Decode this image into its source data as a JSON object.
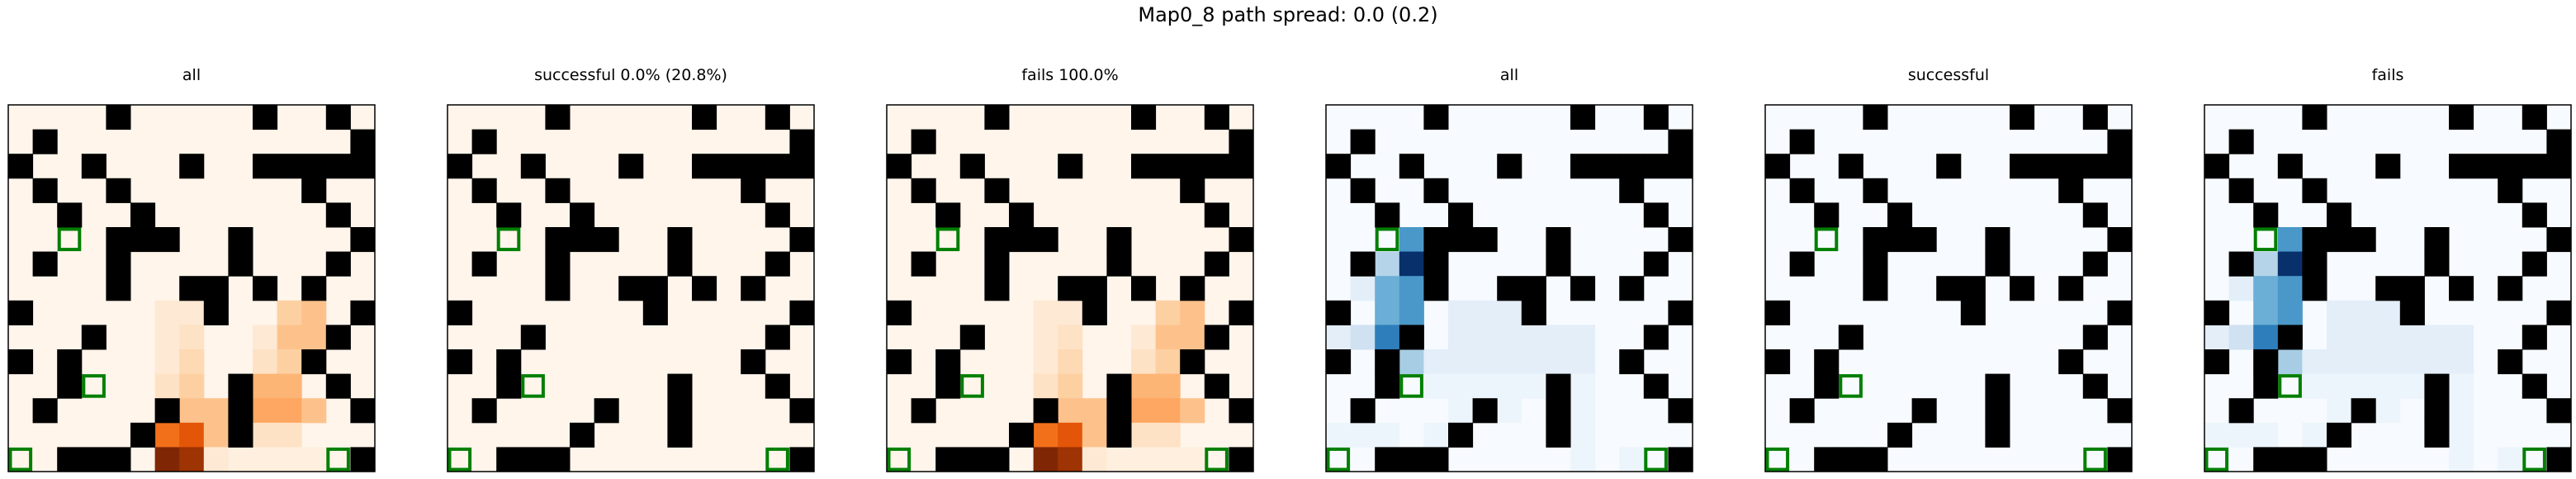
{
  "figure_title": "Map0_8 path spread: 0.0 (0.2)",
  "chart_data": [
    {
      "type": "heatmap",
      "title": "all",
      "colormap": "Oranges",
      "grid_size": 15,
      "max_value": 1.0,
      "markers": [
        {
          "row": 5,
          "col": 2
        },
        {
          "row": 11,
          "col": 3
        },
        {
          "row": 14,
          "col": 0
        },
        {
          "row": 14,
          "col": 13
        }
      ],
      "highlights": [
        {
          "row": 8,
          "col": 6,
          "v": 0.1
        },
        {
          "row": 8,
          "col": 7,
          "v": 0.1
        },
        {
          "row": 8,
          "col": 11,
          "v": 0.25
        },
        {
          "row": 8,
          "col": 12,
          "v": 0.3
        },
        {
          "row": 9,
          "col": 6,
          "v": 0.1
        },
        {
          "row": 9,
          "col": 7,
          "v": 0.15
        },
        {
          "row": 9,
          "col": 10,
          "v": 0.1
        },
        {
          "row": 9,
          "col": 11,
          "v": 0.3
        },
        {
          "row": 9,
          "col": 12,
          "v": 0.3
        },
        {
          "row": 10,
          "col": 6,
          "v": 0.1
        },
        {
          "row": 10,
          "col": 7,
          "v": 0.2
        },
        {
          "row": 10,
          "col": 10,
          "v": 0.15
        },
        {
          "row": 10,
          "col": 11,
          "v": 0.25
        },
        {
          "row": 10,
          "col": 12,
          "v": 0.3
        },
        {
          "row": 11,
          "col": 6,
          "v": 0.15
        },
        {
          "row": 11,
          "col": 7,
          "v": 0.25
        },
        {
          "row": 11,
          "col": 10,
          "v": 0.35
        },
        {
          "row": 11,
          "col": 11,
          "v": 0.35
        },
        {
          "row": 12,
          "col": 7,
          "v": 0.3
        },
        {
          "row": 12,
          "col": 8,
          "v": 0.3
        },
        {
          "row": 12,
          "col": 10,
          "v": 0.4
        },
        {
          "row": 12,
          "col": 11,
          "v": 0.4
        },
        {
          "row": 12,
          "col": 12,
          "v": 0.3
        },
        {
          "row": 13,
          "col": 6,
          "v": 0.6
        },
        {
          "row": 13,
          "col": 7,
          "v": 0.7
        },
        {
          "row": 13,
          "col": 8,
          "v": 0.3
        },
        {
          "row": 13,
          "col": 10,
          "v": 0.15
        },
        {
          "row": 13,
          "col": 11,
          "v": 0.15
        },
        {
          "row": 14,
          "col": 6,
          "v": 1.0
        },
        {
          "row": 14,
          "col": 7,
          "v": 0.9
        },
        {
          "row": 14,
          "col": 8,
          "v": 0.1
        },
        {
          "row": 14,
          "col": 9,
          "v": 0.05
        },
        {
          "row": 14,
          "col": 10,
          "v": 0.05
        },
        {
          "row": 14,
          "col": 11,
          "v": 0.05
        },
        {
          "row": 14,
          "col": 12,
          "v": 0.05
        }
      ]
    },
    {
      "type": "heatmap",
      "title": "successful 0.0% (20.8%)",
      "colormap": "Oranges",
      "grid_size": 15,
      "max_value": 1.0,
      "markers": [
        {
          "row": 5,
          "col": 2
        },
        {
          "row": 11,
          "col": 3
        },
        {
          "row": 14,
          "col": 0
        },
        {
          "row": 14,
          "col": 13
        }
      ],
      "highlights": []
    },
    {
      "type": "heatmap",
      "title": "fails 100.0%",
      "colormap": "Oranges",
      "grid_size": 15,
      "max_value": 1.0,
      "markers": [
        {
          "row": 5,
          "col": 2
        },
        {
          "row": 11,
          "col": 3
        },
        {
          "row": 14,
          "col": 0
        },
        {
          "row": 14,
          "col": 13
        }
      ],
      "highlights": [
        {
          "row": 8,
          "col": 6,
          "v": 0.1
        },
        {
          "row": 8,
          "col": 7,
          "v": 0.1
        },
        {
          "row": 8,
          "col": 11,
          "v": 0.25
        },
        {
          "row": 8,
          "col": 12,
          "v": 0.3
        },
        {
          "row": 9,
          "col": 6,
          "v": 0.1
        },
        {
          "row": 9,
          "col": 7,
          "v": 0.15
        },
        {
          "row": 9,
          "col": 10,
          "v": 0.1
        },
        {
          "row": 9,
          "col": 11,
          "v": 0.3
        },
        {
          "row": 9,
          "col": 12,
          "v": 0.3
        },
        {
          "row": 10,
          "col": 6,
          "v": 0.1
        },
        {
          "row": 10,
          "col": 7,
          "v": 0.2
        },
        {
          "row": 10,
          "col": 10,
          "v": 0.15
        },
        {
          "row": 10,
          "col": 11,
          "v": 0.25
        },
        {
          "row": 10,
          "col": 12,
          "v": 0.3
        },
        {
          "row": 11,
          "col": 6,
          "v": 0.15
        },
        {
          "row": 11,
          "col": 7,
          "v": 0.25
        },
        {
          "row": 11,
          "col": 10,
          "v": 0.35
        },
        {
          "row": 11,
          "col": 11,
          "v": 0.35
        },
        {
          "row": 12,
          "col": 7,
          "v": 0.3
        },
        {
          "row": 12,
          "col": 8,
          "v": 0.3
        },
        {
          "row": 12,
          "col": 10,
          "v": 0.4
        },
        {
          "row": 12,
          "col": 11,
          "v": 0.4
        },
        {
          "row": 12,
          "col": 12,
          "v": 0.3
        },
        {
          "row": 13,
          "col": 6,
          "v": 0.6
        },
        {
          "row": 13,
          "col": 7,
          "v": 0.7
        },
        {
          "row": 13,
          "col": 8,
          "v": 0.3
        },
        {
          "row": 13,
          "col": 10,
          "v": 0.15
        },
        {
          "row": 13,
          "col": 11,
          "v": 0.15
        },
        {
          "row": 14,
          "col": 6,
          "v": 1.0
        },
        {
          "row": 14,
          "col": 7,
          "v": 0.9
        },
        {
          "row": 14,
          "col": 8,
          "v": 0.1
        },
        {
          "row": 14,
          "col": 9,
          "v": 0.05
        },
        {
          "row": 14,
          "col": 10,
          "v": 0.05
        },
        {
          "row": 14,
          "col": 11,
          "v": 0.05
        },
        {
          "row": 14,
          "col": 12,
          "v": 0.05
        }
      ]
    },
    {
      "type": "heatmap",
      "title": "all",
      "colormap": "Blues",
      "grid_size": 15,
      "max_value": 1.0,
      "markers": [
        {
          "row": 5,
          "col": 2
        },
        {
          "row": 11,
          "col": 3
        },
        {
          "row": 14,
          "col": 0
        },
        {
          "row": 14,
          "col": 13
        }
      ],
      "highlights": [
        {
          "row": 5,
          "col": 3,
          "v": 0.6
        },
        {
          "row": 6,
          "col": 1,
          "v": 0.1
        },
        {
          "row": 6,
          "col": 2,
          "v": 0.3
        },
        {
          "row": 6,
          "col": 3,
          "v": 1.0
        },
        {
          "row": 7,
          "col": 1,
          "v": 0.1
        },
        {
          "row": 7,
          "col": 2,
          "v": 0.5
        },
        {
          "row": 7,
          "col": 3,
          "v": 0.6
        },
        {
          "row": 8,
          "col": 2,
          "v": 0.5
        },
        {
          "row": 8,
          "col": 3,
          "v": 0.6
        },
        {
          "row": 8,
          "col": 5,
          "v": 0.1
        },
        {
          "row": 8,
          "col": 6,
          "v": 0.1
        },
        {
          "row": 8,
          "col": 7,
          "v": 0.1
        },
        {
          "row": 9,
          "col": 0,
          "v": 0.1
        },
        {
          "row": 9,
          "col": 1,
          "v": 0.2
        },
        {
          "row": 9,
          "col": 2,
          "v": 0.7
        },
        {
          "row": 9,
          "col": 3,
          "v": 0.35
        },
        {
          "row": 9,
          "col": 5,
          "v": 0.1
        },
        {
          "row": 9,
          "col": 6,
          "v": 0.1
        },
        {
          "row": 9,
          "col": 7,
          "v": 0.1
        },
        {
          "row": 9,
          "col": 8,
          "v": 0.1
        },
        {
          "row": 9,
          "col": 9,
          "v": 0.1
        },
        {
          "row": 9,
          "col": 10,
          "v": 0.1
        },
        {
          "row": 10,
          "col": 0,
          "v": 0.1
        },
        {
          "row": 10,
          "col": 2,
          "v": 0.3
        },
        {
          "row": 10,
          "col": 3,
          "v": 0.35
        },
        {
          "row": 10,
          "col": 4,
          "v": 0.1
        },
        {
          "row": 10,
          "col": 5,
          "v": 0.1
        },
        {
          "row": 10,
          "col": 6,
          "v": 0.1
        },
        {
          "row": 10,
          "col": 7,
          "v": 0.1
        },
        {
          "row": 10,
          "col": 8,
          "v": 0.1
        },
        {
          "row": 10,
          "col": 9,
          "v": 0.1
        },
        {
          "row": 10,
          "col": 10,
          "v": 0.1
        },
        {
          "row": 11,
          "col": 4,
          "v": 0.05
        },
        {
          "row": 11,
          "col": 5,
          "v": 0.05
        },
        {
          "row": 11,
          "col": 6,
          "v": 0.05
        },
        {
          "row": 11,
          "col": 7,
          "v": 0.05
        },
        {
          "row": 11,
          "col": 8,
          "v": 0.05
        },
        {
          "row": 11,
          "col": 10,
          "v": 0.05
        },
        {
          "row": 12,
          "col": 5,
          "v": 0.05
        },
        {
          "row": 12,
          "col": 6,
          "v": 0.05
        },
        {
          "row": 12,
          "col": 7,
          "v": 0.05
        },
        {
          "row": 12,
          "col": 9,
          "v": 0.05
        },
        {
          "row": 12,
          "col": 10,
          "v": 0.05
        },
        {
          "row": 13,
          "col": 0,
          "v": 0.05
        },
        {
          "row": 13,
          "col": 1,
          "v": 0.05
        },
        {
          "row": 13,
          "col": 2,
          "v": 0.05
        },
        {
          "row": 13,
          "col": 4,
          "v": 0.05
        },
        {
          "row": 13,
          "col": 10,
          "v": 0.05
        },
        {
          "row": 14,
          "col": 10,
          "v": 0.05
        },
        {
          "row": 14,
          "col": 12,
          "v": 0.05
        }
      ]
    },
    {
      "type": "heatmap",
      "title": "successful",
      "colormap": "Blues",
      "grid_size": 15,
      "max_value": 1.0,
      "markers": [
        {
          "row": 5,
          "col": 2
        },
        {
          "row": 11,
          "col": 3
        },
        {
          "row": 14,
          "col": 0
        },
        {
          "row": 14,
          "col": 13
        }
      ],
      "highlights": []
    },
    {
      "type": "heatmap",
      "title": "fails",
      "colormap": "Blues",
      "grid_size": 15,
      "max_value": 1.0,
      "markers": [
        {
          "row": 5,
          "col": 2
        },
        {
          "row": 11,
          "col": 3
        },
        {
          "row": 14,
          "col": 0
        },
        {
          "row": 14,
          "col": 13
        }
      ],
      "highlights": [
        {
          "row": 5,
          "col": 3,
          "v": 0.6
        },
        {
          "row": 6,
          "col": 1,
          "v": 0.1
        },
        {
          "row": 6,
          "col": 2,
          "v": 0.3
        },
        {
          "row": 6,
          "col": 3,
          "v": 1.0
        },
        {
          "row": 7,
          "col": 1,
          "v": 0.1
        },
        {
          "row": 7,
          "col": 2,
          "v": 0.5
        },
        {
          "row": 7,
          "col": 3,
          "v": 0.6
        },
        {
          "row": 8,
          "col": 2,
          "v": 0.5
        },
        {
          "row": 8,
          "col": 3,
          "v": 0.6
        },
        {
          "row": 8,
          "col": 5,
          "v": 0.1
        },
        {
          "row": 8,
          "col": 6,
          "v": 0.1
        },
        {
          "row": 8,
          "col": 7,
          "v": 0.1
        },
        {
          "row": 9,
          "col": 0,
          "v": 0.1
        },
        {
          "row": 9,
          "col": 1,
          "v": 0.2
        },
        {
          "row": 9,
          "col": 2,
          "v": 0.7
        },
        {
          "row": 9,
          "col": 3,
          "v": 0.35
        },
        {
          "row": 9,
          "col": 5,
          "v": 0.1
        },
        {
          "row": 9,
          "col": 6,
          "v": 0.1
        },
        {
          "row": 9,
          "col": 7,
          "v": 0.1
        },
        {
          "row": 9,
          "col": 8,
          "v": 0.1
        },
        {
          "row": 9,
          "col": 9,
          "v": 0.1
        },
        {
          "row": 9,
          "col": 10,
          "v": 0.1
        },
        {
          "row": 10,
          "col": 0,
          "v": 0.1
        },
        {
          "row": 10,
          "col": 2,
          "v": 0.3
        },
        {
          "row": 10,
          "col": 3,
          "v": 0.35
        },
        {
          "row": 10,
          "col": 4,
          "v": 0.1
        },
        {
          "row": 10,
          "col": 5,
          "v": 0.1
        },
        {
          "row": 10,
          "col": 6,
          "v": 0.1
        },
        {
          "row": 10,
          "col": 7,
          "v": 0.1
        },
        {
          "row": 10,
          "col": 8,
          "v": 0.1
        },
        {
          "row": 10,
          "col": 9,
          "v": 0.1
        },
        {
          "row": 10,
          "col": 10,
          "v": 0.1
        },
        {
          "row": 11,
          "col": 4,
          "v": 0.05
        },
        {
          "row": 11,
          "col": 5,
          "v": 0.05
        },
        {
          "row": 11,
          "col": 6,
          "v": 0.05
        },
        {
          "row": 11,
          "col": 7,
          "v": 0.05
        },
        {
          "row": 11,
          "col": 8,
          "v": 0.05
        },
        {
          "row": 11,
          "col": 10,
          "v": 0.05
        },
        {
          "row": 12,
          "col": 5,
          "v": 0.05
        },
        {
          "row": 12,
          "col": 6,
          "v": 0.05
        },
        {
          "row": 12,
          "col": 7,
          "v": 0.05
        },
        {
          "row": 12,
          "col": 9,
          "v": 0.05
        },
        {
          "row": 12,
          "col": 10,
          "v": 0.05
        },
        {
          "row": 13,
          "col": 0,
          "v": 0.05
        },
        {
          "row": 13,
          "col": 1,
          "v": 0.05
        },
        {
          "row": 13,
          "col": 2,
          "v": 0.05
        },
        {
          "row": 13,
          "col": 4,
          "v": 0.05
        },
        {
          "row": 13,
          "col": 10,
          "v": 0.05
        },
        {
          "row": 14,
          "col": 10,
          "v": 0.05
        },
        {
          "row": 14,
          "col": 12,
          "v": 0.05
        }
      ]
    }
  ],
  "walls": [
    [
      0,
      4
    ],
    [
      0,
      10
    ],
    [
      0,
      13
    ],
    [
      1,
      1
    ],
    [
      1,
      14
    ],
    [
      2,
      0
    ],
    [
      2,
      3
    ],
    [
      2,
      7
    ],
    [
      2,
      10
    ],
    [
      2,
      11
    ],
    [
      2,
      12
    ],
    [
      2,
      13
    ],
    [
      2,
      14
    ],
    [
      3,
      1
    ],
    [
      3,
      4
    ],
    [
      3,
      12
    ],
    [
      4,
      2
    ],
    [
      4,
      5
    ],
    [
      4,
      13
    ],
    [
      5,
      4
    ],
    [
      5,
      5
    ],
    [
      5,
      6
    ],
    [
      5,
      9
    ],
    [
      5,
      14
    ],
    [
      6,
      1
    ],
    [
      6,
      4
    ],
    [
      6,
      9
    ],
    [
      6,
      13
    ],
    [
      7,
      4
    ],
    [
      7,
      7
    ],
    [
      7,
      8
    ],
    [
      7,
      10
    ],
    [
      7,
      12
    ],
    [
      8,
      0
    ],
    [
      8,
      8
    ],
    [
      8,
      14
    ],
    [
      9,
      3
    ],
    [
      9,
      13
    ],
    [
      10,
      0
    ],
    [
      10,
      2
    ],
    [
      10,
      12
    ],
    [
      11,
      2
    ],
    [
      11,
      9
    ],
    [
      11,
      13
    ],
    [
      12,
      1
    ],
    [
      12,
      6
    ],
    [
      12,
      9
    ],
    [
      12,
      14
    ],
    [
      13,
      5
    ],
    [
      13,
      9
    ],
    [
      14,
      2
    ],
    [
      14,
      3
    ],
    [
      14,
      4
    ],
    [
      14,
      14
    ]
  ],
  "colors": {
    "wall": "#000000",
    "marker": "#007f00",
    "oranges": [
      "#fff5eb",
      "#fee6ce",
      "#fdd0a2",
      "#fdae6b",
      "#fd8d3c",
      "#f16913",
      "#d94801",
      "#a63603",
      "#7f2704"
    ],
    "blues": [
      "#f7fbff",
      "#deebf7",
      "#c6dbef",
      "#9ecae1",
      "#6baed6",
      "#4292c6",
      "#2171b5",
      "#08519c",
      "#08306b"
    ]
  }
}
